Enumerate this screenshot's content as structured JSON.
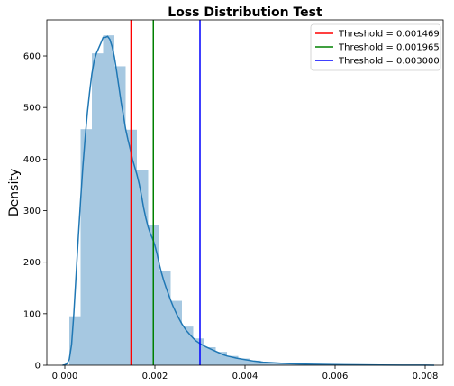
{
  "chart_data": {
    "type": "bar",
    "title": "Loss Distribution Test",
    "xlabel": "",
    "ylabel": "Density",
    "xlim": [
      -0.0004,
      0.0084
    ],
    "ylim": [
      0,
      670
    ],
    "xticks": [
      0.0,
      0.002,
      0.004,
      0.006,
      0.008
    ],
    "xtick_labels": [
      "0.000",
      "0.002",
      "0.004",
      "0.006",
      "0.008"
    ],
    "yticks": [
      0,
      100,
      200,
      300,
      400,
      500,
      600
    ],
    "ytick_labels": [
      "0",
      "100",
      "200",
      "300",
      "400",
      "500",
      "600"
    ],
    "grid": false,
    "legend_position": "top-right",
    "histogram": {
      "color": "#a6c8e1",
      "bins": [
        {
          "x0": 0.0001,
          "x1": 0.00035,
          "value": 95
        },
        {
          "x0": 0.00035,
          "x1": 0.0006,
          "value": 458
        },
        {
          "x0": 0.0006,
          "x1": 0.00085,
          "value": 605
        },
        {
          "x0": 0.00085,
          "x1": 0.0011,
          "value": 640
        },
        {
          "x0": 0.0011,
          "x1": 0.00135,
          "value": 580
        },
        {
          "x0": 0.00135,
          "x1": 0.0016,
          "value": 457
        },
        {
          "x0": 0.0016,
          "x1": 0.00185,
          "value": 378
        },
        {
          "x0": 0.00185,
          "x1": 0.0021,
          "value": 272
        },
        {
          "x0": 0.0021,
          "x1": 0.00235,
          "value": 183
        },
        {
          "x0": 0.00235,
          "x1": 0.0026,
          "value": 125
        },
        {
          "x0": 0.0026,
          "x1": 0.00285,
          "value": 75
        },
        {
          "x0": 0.00285,
          "x1": 0.0031,
          "value": 52
        },
        {
          "x0": 0.0031,
          "x1": 0.00335,
          "value": 35
        },
        {
          "x0": 0.00335,
          "x1": 0.0036,
          "value": 26
        },
        {
          "x0": 0.0036,
          "x1": 0.00385,
          "value": 18
        },
        {
          "x0": 0.00385,
          "x1": 0.0041,
          "value": 13
        },
        {
          "x0": 0.0041,
          "x1": 0.00435,
          "value": 9
        },
        {
          "x0": 0.00435,
          "x1": 0.0046,
          "value": 6
        },
        {
          "x0": 0.0046,
          "x1": 0.00485,
          "value": 4
        },
        {
          "x0": 0.00485,
          "x1": 0.0051,
          "value": 3
        },
        {
          "x0": 0.0051,
          "x1": 0.00535,
          "value": 2
        },
        {
          "x0": 0.00535,
          "x1": 0.0056,
          "value": 2
        },
        {
          "x0": 0.0056,
          "x1": 0.00585,
          "value": 1
        },
        {
          "x0": 0.00585,
          "x1": 0.0061,
          "value": 1
        }
      ]
    },
    "kde": {
      "color": "#1f77b4",
      "points": [
        [
          -5e-05,
          0
        ],
        [
          0.0,
          1
        ],
        [
          5e-05,
          3
        ],
        [
          0.0001,
          12
        ],
        [
          0.00015,
          40
        ],
        [
          0.0002,
          100
        ],
        [
          0.00025,
          175
        ],
        [
          0.0003,
          250
        ],
        [
          0.00035,
          320
        ],
        [
          0.0004,
          385
        ],
        [
          0.00045,
          440
        ],
        [
          0.0005,
          490
        ],
        [
          0.00055,
          530
        ],
        [
          0.0006,
          565
        ],
        [
          0.00065,
          590
        ],
        [
          0.0007,
          605
        ],
        [
          0.00075,
          615
        ],
        [
          0.0008,
          625
        ],
        [
          0.00085,
          636
        ],
        [
          0.0009,
          636
        ],
        [
          0.00095,
          638
        ],
        [
          0.001,
          632
        ],
        [
          0.00105,
          618
        ],
        [
          0.0011,
          598
        ],
        [
          0.00115,
          570
        ],
        [
          0.0012,
          540
        ],
        [
          0.00125,
          510
        ],
        [
          0.0013,
          485
        ],
        [
          0.00135,
          458
        ],
        [
          0.0014,
          438
        ],
        [
          0.00145,
          420
        ],
        [
          0.0015,
          400
        ],
        [
          0.00155,
          385
        ],
        [
          0.0016,
          370
        ],
        [
          0.00165,
          352
        ],
        [
          0.0017,
          330
        ],
        [
          0.00175,
          305
        ],
        [
          0.0018,
          285
        ],
        [
          0.00185,
          268
        ],
        [
          0.0019,
          255
        ],
        [
          0.00195,
          245
        ],
        [
          0.002,
          232
        ],
        [
          0.00205,
          215
        ],
        [
          0.0021,
          195
        ],
        [
          0.00215,
          178
        ],
        [
          0.0022,
          163
        ],
        [
          0.00225,
          150
        ],
        [
          0.0023,
          138
        ],
        [
          0.00235,
          126
        ],
        [
          0.0024,
          115
        ],
        [
          0.0025,
          96
        ],
        [
          0.0026,
          80
        ],
        [
          0.0027,
          67
        ],
        [
          0.0028,
          57
        ],
        [
          0.0029,
          48
        ],
        [
          0.003,
          42
        ],
        [
          0.0031,
          37
        ],
        [
          0.0032,
          33
        ],
        [
          0.0033,
          29
        ],
        [
          0.0034,
          25
        ],
        [
          0.0035,
          21
        ],
        [
          0.0036,
          18
        ],
        [
          0.0038,
          14
        ],
        [
          0.004,
          11
        ],
        [
          0.0042,
          8
        ],
        [
          0.0044,
          6
        ],
        [
          0.0046,
          5
        ],
        [
          0.0048,
          4
        ],
        [
          0.005,
          3
        ],
        [
          0.0052,
          2.5
        ],
        [
          0.0055,
          2
        ],
        [
          0.006,
          1.2
        ],
        [
          0.0065,
          0.8
        ],
        [
          0.007,
          0.5
        ],
        [
          0.0075,
          0.3
        ],
        [
          0.008,
          0.2
        ],
        [
          0.0082,
          0.1
        ]
      ]
    },
    "thresholds": [
      {
        "label": "Threshold = 0.001469",
        "value": 0.001469,
        "color": "#ff0000"
      },
      {
        "label": "Threshold = 0.001965",
        "value": 0.001965,
        "color": "#008000"
      },
      {
        "label": "Threshold = 0.003000",
        "value": 0.003,
        "color": "#0000ff"
      }
    ]
  }
}
